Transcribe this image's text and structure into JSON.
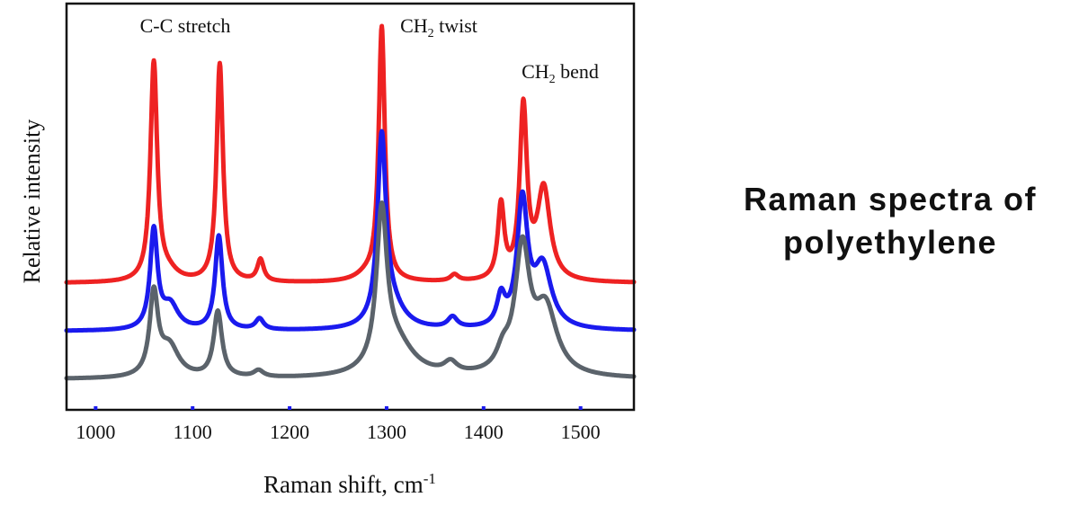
{
  "chart_data": {
    "type": "line",
    "title": "Raman spectra of polyethylene",
    "xlabel": "Raman shift, cm",
    "xlabel_sup": "-1",
    "ylabel": "Relative intensity",
    "xlim": [
      970,
      1555
    ],
    "xticks": [
      1000,
      1100,
      1200,
      1300,
      1400,
      1500
    ],
    "xticklabels": [
      "1000",
      "1100",
      "1200",
      "1300",
      "1400",
      "1500"
    ],
    "y_ticks_shown": false,
    "grid": false,
    "legend": "none",
    "annotations": [
      {
        "text": "C-C stretch",
        "x": 1087
      },
      {
        "text": "CH",
        "sub": "2",
        "suffix": " twist",
        "x": 1330
      },
      {
        "text": "CH",
        "sub": "2",
        "suffix": " bend",
        "x": 1465
      }
    ],
    "series": [
      {
        "color": "#ee2222",
        "baseline": 0.58,
        "peaks": [
          {
            "center": 1060,
            "height": 1.0,
            "width": 4.2
          },
          {
            "center": 1075,
            "height": 0.04,
            "width": 12
          },
          {
            "center": 1128,
            "height": 1.0,
            "width": 4.0
          },
          {
            "center": 1170,
            "height": 0.1,
            "width": 4.0
          },
          {
            "center": 1295,
            "height": 1.16,
            "width": 3.8
          },
          {
            "center": 1280,
            "height": 0.03,
            "width": 14
          },
          {
            "center": 1370,
            "height": 0.03,
            "width": 5.0
          },
          {
            "center": 1418,
            "height": 0.34,
            "width": 4.0
          },
          {
            "center": 1441,
            "height": 0.78,
            "width": 4.5
          },
          {
            "center": 1462,
            "height": 0.42,
            "width": 8.0
          }
        ]
      },
      {
        "color": "#1a1aee",
        "baseline": 0.36,
        "peaks": [
          {
            "center": 1060,
            "height": 0.45,
            "width": 4.6
          },
          {
            "center": 1077,
            "height": 0.11,
            "width": 10
          },
          {
            "center": 1127,
            "height": 0.43,
            "width": 4.6
          },
          {
            "center": 1169,
            "height": 0.05,
            "width": 5.0
          },
          {
            "center": 1295,
            "height": 0.84,
            "width": 5.2
          },
          {
            "center": 1305,
            "height": 0.1,
            "width": 16
          },
          {
            "center": 1368,
            "height": 0.05,
            "width": 6.0
          },
          {
            "center": 1418,
            "height": 0.13,
            "width": 5.0
          },
          {
            "center": 1440,
            "height": 0.57,
            "width": 6.5
          },
          {
            "center": 1461,
            "height": 0.28,
            "width": 11
          }
        ]
      },
      {
        "color": "#5b636b",
        "baseline": 0.14,
        "peaks": [
          {
            "center": 1060,
            "height": 0.37,
            "width": 5.2
          },
          {
            "center": 1076,
            "height": 0.14,
            "width": 12
          },
          {
            "center": 1126,
            "height": 0.3,
            "width": 5.2
          },
          {
            "center": 1168,
            "height": 0.03,
            "width": 6.0
          },
          {
            "center": 1295,
            "height": 0.7,
            "width": 6.5
          },
          {
            "center": 1310,
            "height": 0.15,
            "width": 22
          },
          {
            "center": 1366,
            "height": 0.05,
            "width": 8.0
          },
          {
            "center": 1420,
            "height": 0.08,
            "width": 8.0
          },
          {
            "center": 1440,
            "height": 0.56,
            "width": 9.0
          },
          {
            "center": 1464,
            "height": 0.3,
            "width": 14
          }
        ]
      }
    ]
  }
}
